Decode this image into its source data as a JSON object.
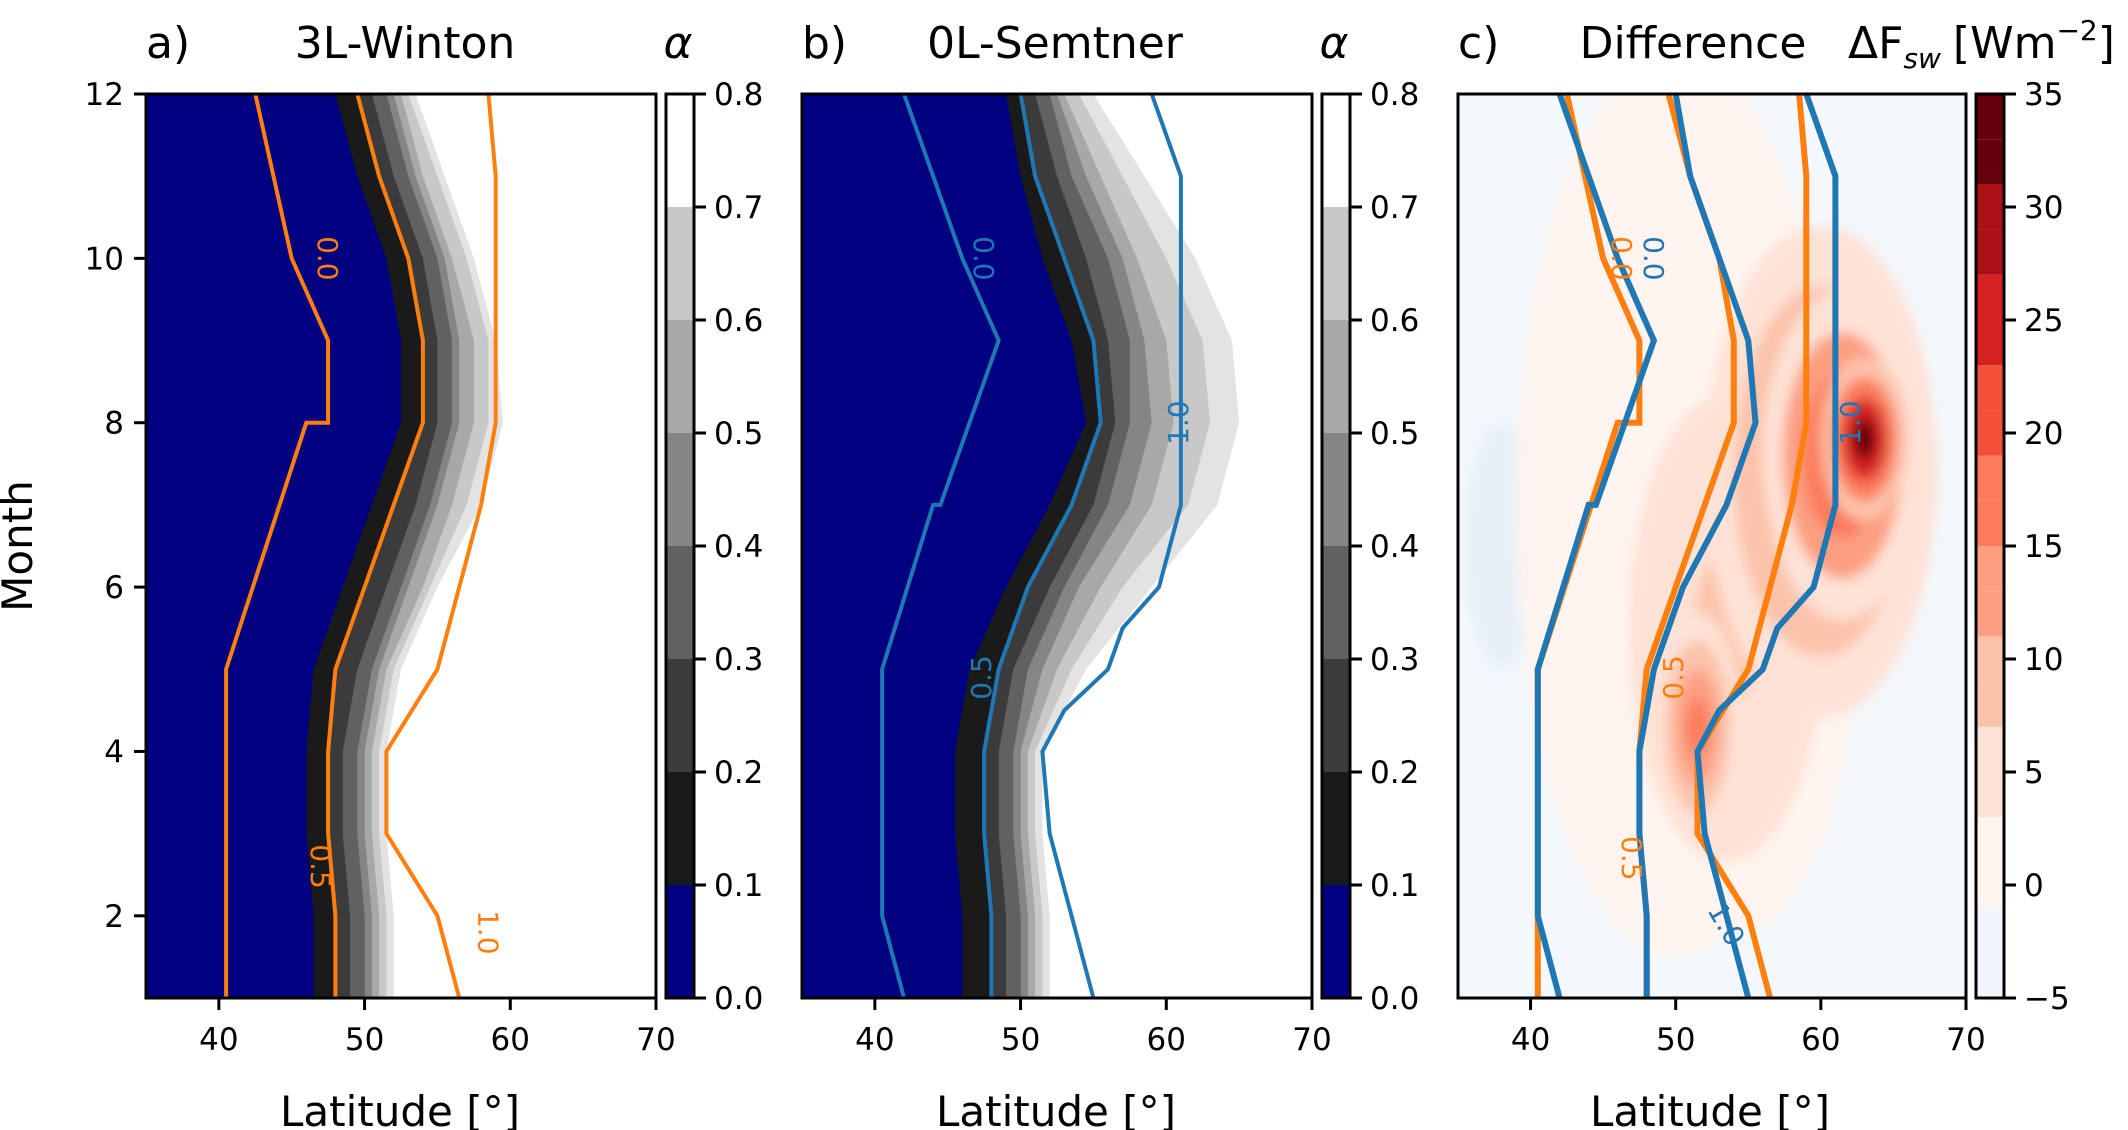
{
  "colors": {
    "ocean_blue": "#000080",
    "ice_grays": [
      "#1a1a1a",
      "#3b3b3b",
      "#616161",
      "#858585",
      "#a8a8a8",
      "#c8c8c8",
      "#e3e3e3"
    ],
    "contour_orange": "#ff7f0e",
    "contour_blue": "#1f77b4",
    "diff_scale": [
      "#f0f6fb",
      "#fff4ef",
      "#fee2d6",
      "#fcc3ab",
      "#fc9f81",
      "#fb7b5b",
      "#f44f39",
      "#d52221",
      "#aa1016",
      "#67000d"
    ]
  },
  "figure": {
    "ylabel": "Month",
    "xlabel": "Latitude [°]"
  },
  "chart_data": [
    {
      "type": "contourf",
      "panel": "a)",
      "title": "3L-Winton",
      "xlabel": "Latitude [°]",
      "ylabel": "Month",
      "xlim": [
        35,
        70
      ],
      "ylim": [
        1,
        12
      ],
      "xticks": [
        "40",
        "50",
        "60",
        "70"
      ],
      "yticks": [
        "2",
        "4",
        "6",
        "8",
        "10",
        "12"
      ],
      "fill_edges_latitude": {
        "months": [
          1,
          2,
          3,
          4,
          5,
          6,
          7,
          8,
          9,
          10,
          11,
          12
        ],
        "open_water_edge": [
          46.5,
          46.5,
          46,
          46,
          46.5,
          48.5,
          50.5,
          52.5,
          52.5,
          51.5,
          49.5,
          48
        ],
        "upper_edges": [
          [
            48,
            48,
            47.5,
            47.5,
            48,
            50,
            52,
            54,
            54,
            53,
            51,
            49.5
          ],
          [
            49,
            49,
            48.5,
            48.5,
            49.5,
            51.5,
            53.5,
            55,
            55,
            54,
            52,
            50.5
          ],
          [
            50,
            50,
            49.5,
            49.5,
            50.5,
            52.5,
            54.5,
            56,
            56,
            55,
            53,
            51.5
          ],
          [
            50.5,
            50.5,
            50,
            50,
            51,
            53,
            55,
            56.5,
            56.5,
            55.5,
            53.5,
            52
          ],
          [
            51,
            51,
            50.5,
            50.5,
            51.5,
            54,
            56,
            57.5,
            57.5,
            56,
            54,
            52.5
          ],
          [
            51.5,
            51.5,
            51,
            51,
            52,
            54.5,
            57,
            58.5,
            58.5,
            57,
            55,
            53
          ],
          [
            52,
            52,
            51.5,
            51.5,
            52.5,
            55,
            58,
            59.5,
            59,
            57.5,
            55.5,
            53.5
          ]
        ]
      },
      "contours": [
        {
          "level": "0.0",
          "color": "orange",
          "months": [
            1,
            5,
            8,
            8,
            9,
            10,
            12
          ],
          "latitude": [
            40.5,
            40.5,
            46,
            47.5,
            47.5,
            45,
            42.5
          ]
        },
        {
          "level": "0.5",
          "color": "orange",
          "months": [
            1,
            2,
            3,
            4,
            5,
            6,
            7,
            8,
            9,
            10,
            11,
            12
          ],
          "latitude": [
            48,
            48,
            47.5,
            47.5,
            48,
            50,
            52,
            54,
            54,
            53,
            51,
            49.5
          ]
        },
        {
          "level": "1.0",
          "color": "orange",
          "months": [
            1,
            2,
            3,
            4,
            5,
            7,
            8,
            9,
            11,
            12
          ],
          "latitude": [
            56.5,
            55,
            51.5,
            51.5,
            55,
            58,
            59,
            59,
            59,
            58.5
          ]
        }
      ],
      "contour_labels": [
        "0.0",
        "0.5",
        "1.0"
      ],
      "colorbar": {
        "label": "α",
        "range": [
          0.0,
          0.8
        ],
        "ticks": [
          "0.0",
          "0.1",
          "0.2",
          "0.3",
          "0.4",
          "0.5",
          "0.6",
          "0.7",
          "0.8"
        ]
      }
    },
    {
      "type": "contourf",
      "panel": "b)",
      "title": "0L-Semtner",
      "xlabel": "Latitude [°]",
      "xlim": [
        35,
        70
      ],
      "ylim": [
        1,
        12
      ],
      "xticks": [
        "40",
        "50",
        "60",
        "70"
      ],
      "fill_edges_latitude": {
        "months": [
          1,
          2,
          3,
          4,
          5,
          6,
          7,
          8,
          9,
          10,
          11,
          12
        ],
        "open_water_edge": [
          46,
          46,
          45.5,
          45.5,
          46.5,
          49,
          52,
          54.5,
          53.5,
          51.5,
          50,
          49
        ],
        "upper_edges": [
          [
            48,
            48,
            47.5,
            47.5,
            48.5,
            50.5,
            53.5,
            55.5,
            55,
            53,
            51,
            50
          ],
          [
            49,
            49,
            48.5,
            48.5,
            49.5,
            52,
            55,
            56.5,
            56,
            54.5,
            52.5,
            51
          ],
          [
            50,
            50,
            49.5,
            49.5,
            50.5,
            53,
            56,
            57.5,
            57.5,
            56,
            53.5,
            52
          ],
          [
            50.5,
            50.5,
            50,
            50,
            51.5,
            54,
            57.5,
            59,
            58.5,
            57,
            54.5,
            52.5
          ],
          [
            51,
            51,
            50.5,
            50.5,
            52.5,
            55.5,
            59,
            60.5,
            60,
            58,
            55.5,
            53
          ],
          [
            51.5,
            51.5,
            51,
            51,
            53.5,
            57,
            61.5,
            63,
            62.5,
            60,
            57,
            54
          ],
          [
            52,
            52,
            51.5,
            51.5,
            54.5,
            59,
            63.5,
            65,
            64.5,
            62,
            58.5,
            55
          ]
        ]
      },
      "contours": [
        {
          "level": "0.0",
          "color": "blue",
          "months": [
            1,
            2,
            5,
            7,
            7,
            9,
            10,
            12
          ],
          "latitude": [
            42,
            40.5,
            40.5,
            44,
            44.5,
            48.5,
            46,
            42
          ]
        },
        {
          "level": "0.5",
          "color": "blue",
          "months": [
            1,
            2,
            3,
            4,
            5,
            6,
            7,
            8,
            9,
            10,
            11,
            12
          ],
          "latitude": [
            48,
            48,
            47.5,
            47.5,
            48.5,
            50.5,
            53.5,
            55.5,
            55,
            53,
            51,
            50
          ]
        },
        {
          "level": "1.0",
          "color": "blue",
          "months": [
            1,
            3,
            4,
            4.5,
            5,
            5.5,
            6,
            7,
            8,
            8.5,
            11,
            12
          ],
          "latitude": [
            55,
            52,
            51.5,
            53,
            56,
            57,
            59.5,
            61,
            61,
            61,
            61,
            59
          ]
        }
      ],
      "contour_labels": [
        "0.0",
        "0.5",
        "1.0"
      ],
      "colorbar": {
        "label": "α",
        "range": [
          0.0,
          0.8
        ],
        "ticks": [
          "0.0",
          "0.1",
          "0.2",
          "0.3",
          "0.4",
          "0.5",
          "0.6",
          "0.7",
          "0.8"
        ]
      }
    },
    {
      "type": "contourf",
      "panel": "c)",
      "title": "Difference",
      "xlabel": "Latitude [°]",
      "xlim": [
        35,
        70
      ],
      "ylim": [
        1,
        12
      ],
      "xticks": [
        "40",
        "50",
        "60",
        "70"
      ],
      "field_blobs": [
        {
          "center": [
            63,
            7.8
          ],
          "radius": [
            3,
            1.0
          ],
          "value": 35
        },
        {
          "center": [
            61.5,
            7.6
          ],
          "radius": [
            5.5,
            2.0
          ],
          "value": 25
        },
        {
          "center": [
            60,
            7.4
          ],
          "radius": [
            8,
            3.0
          ],
          "value": 15
        },
        {
          "center": [
            51.5,
            4.3
          ],
          "radius": [
            3,
            1.4
          ],
          "value": 15
        },
        {
          "center": [
            53.5,
            5.5
          ],
          "radius": [
            9,
            3.8
          ],
          "value": 7
        },
        {
          "center": [
            50,
            7
          ],
          "radius": [
            11,
            5.5
          ],
          "value": 3
        },
        {
          "center": [
            38,
            6.5
          ],
          "radius": [
            2.5,
            1.5
          ],
          "value": -3
        }
      ],
      "contours": [
        {
          "level": "0.0",
          "color": "orange",
          "months": [
            1,
            5,
            8,
            8,
            9,
            10,
            12
          ],
          "latitude": [
            40.5,
            40.5,
            46,
            47.5,
            47.5,
            45,
            42.5
          ]
        },
        {
          "level": "0.5",
          "color": "orange",
          "months": [
            1,
            2,
            3,
            4,
            5,
            6,
            7,
            8,
            9,
            10,
            11,
            12
          ],
          "latitude": [
            48,
            48,
            47.5,
            47.5,
            48,
            50,
            52,
            54,
            54,
            53,
            51,
            49.5
          ]
        },
        {
          "level": "1.0",
          "color": "orange",
          "months": [
            1,
            2,
            3,
            4,
            5,
            7,
            8,
            9,
            11,
            12
          ],
          "latitude": [
            56.5,
            55,
            51.5,
            51.5,
            55,
            58,
            59,
            59,
            59,
            58.5
          ]
        },
        {
          "level": "0.0",
          "color": "blue",
          "months": [
            1,
            2,
            5,
            7,
            7,
            9,
            10,
            12
          ],
          "latitude": [
            42,
            40.5,
            40.5,
            44,
            44.5,
            48.5,
            46,
            42
          ]
        },
        {
          "level": "0.5",
          "color": "blue",
          "months": [
            1,
            2,
            3,
            4,
            5,
            6,
            7,
            8,
            9,
            10,
            11,
            12
          ],
          "latitude": [
            48,
            48,
            47.5,
            47.5,
            48.5,
            50.5,
            53.5,
            55.5,
            55,
            53,
            51,
            50
          ]
        },
        {
          "level": "1.0",
          "color": "blue",
          "months": [
            1,
            3,
            4,
            4.5,
            5,
            5.5,
            6,
            7,
            8,
            8.5,
            11,
            12
          ],
          "latitude": [
            55,
            52,
            51.5,
            53,
            56,
            57,
            59.5,
            61,
            61,
            61,
            61,
            59
          ]
        }
      ],
      "contour_labels": [
        "0.0",
        "0.0",
        "0.5",
        "0.5",
        "1.0",
        "1.0"
      ],
      "colorbar": {
        "label": "ΔF",
        "label_subscript": "sw",
        "label_units": "[Wm",
        "label_exponent": "−2",
        "label_close": "]",
        "range": [
          -5,
          35
        ],
        "ticks": [
          "−5",
          "0",
          "5",
          "10",
          "15",
          "20",
          "25",
          "30",
          "35"
        ]
      }
    }
  ]
}
